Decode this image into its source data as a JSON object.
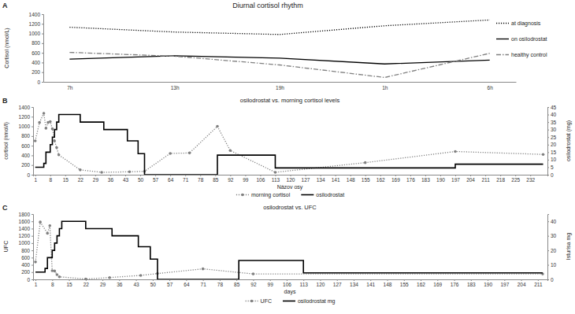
{
  "chart_data": [
    {
      "panel": "A",
      "type": "line",
      "title": "Diurnal cortisol rhythm",
      "y_label": "Cortisol (nmol/L)",
      "categories": [
        "7h",
        "13h",
        "19h",
        "1h",
        "6h"
      ],
      "ylim": [
        0,
        1400
      ],
      "yticks": [
        0,
        200,
        400,
        600,
        800,
        1000,
        1200,
        1400
      ],
      "legend": "right",
      "series": [
        {
          "name": "at diagnosis",
          "color": "#000000",
          "line_style": "dotted",
          "values": [
            1130,
            1030,
            980,
            1160,
            1280
          ]
        },
        {
          "name": "on osilodrostat",
          "color": "#000000",
          "line_style": "solid",
          "values": [
            470,
            540,
            490,
            370,
            450
          ]
        },
        {
          "name": "healthy control",
          "color": "#808080",
          "line_style": "dashdot",
          "values": [
            610,
            530,
            350,
            90,
            590
          ]
        }
      ]
    },
    {
      "panel": "B",
      "type": "line",
      "title": "osilodrostat vs. morning cortisol levels",
      "x_label": "Názov osy",
      "y_label": "cortisol (nmol/l)",
      "y2_label": "osilodrostat (mg)",
      "xlim": [
        0,
        240
      ],
      "xticks": [
        1,
        8,
        15,
        22,
        29,
        36,
        43,
        50,
        57,
        64,
        71,
        78,
        85,
        92,
        99,
        106,
        113,
        120,
        127,
        134,
        141,
        148,
        155,
        162,
        169,
        176,
        183,
        190,
        197,
        204,
        211,
        218,
        225,
        232
      ],
      "ylim": [
        0,
        1400
      ],
      "yticks": [
        0,
        200,
        400,
        600,
        800,
        1000,
        1200,
        1400
      ],
      "y2lim": [
        0,
        45
      ],
      "y2ticks": [
        0,
        5,
        10,
        15,
        20,
        25,
        30,
        35,
        40,
        45
      ],
      "legend": "bottom",
      "series": [
        {
          "name": "morning cortisol",
          "type": "line",
          "color": "#808080",
          "line_style": "dotted",
          "marker": "circle",
          "x": [
            1,
            3,
            5,
            6,
            7,
            8,
            9,
            10,
            11,
            12,
            22,
            32,
            45,
            52,
            64,
            73,
            86,
            92,
            113,
            155,
            197,
            238
          ],
          "values": [
            700,
            1080,
            1270,
            960,
            1080,
            1100,
            950,
            700,
            560,
            410,
            100,
            50,
            60,
            70,
            440,
            450,
            1000,
            500,
            50,
            250,
            480,
            420
          ]
        },
        {
          "name": "osilodrostat",
          "type": "step",
          "axis": "y2",
          "color": "#000000",
          "line_style": "solid",
          "x": [
            1,
            5,
            6,
            8,
            9,
            10,
            11,
            12,
            22,
            33,
            44,
            49,
            52,
            86,
            113,
            197,
            238
          ],
          "values": [
            5,
            7.5,
            15,
            20,
            25,
            30,
            35,
            40,
            35,
            30,
            22.5,
            14,
            0,
            13,
            4.5,
            7,
            7
          ]
        }
      ]
    },
    {
      "panel": "C",
      "type": "line",
      "title": "osilodrostat vs. UFC",
      "x_label": "days",
      "y_label": "UFC",
      "y2_label": "Isturisa mg",
      "xlim": [
        0,
        215
      ],
      "xticks": [
        1,
        8,
        15,
        22,
        29,
        36,
        43,
        50,
        57,
        64,
        71,
        78,
        85,
        92,
        99,
        106,
        113,
        120,
        127,
        134,
        141,
        148,
        155,
        162,
        169,
        176,
        183,
        190,
        197,
        204,
        211
      ],
      "ylim": [
        0,
        1800
      ],
      "yticks": [
        0,
        200,
        400,
        600,
        800,
        1000,
        1200,
        1400,
        1600,
        1800
      ],
      "y2lim": [
        0,
        45
      ],
      "y2ticks": [
        0,
        10,
        20,
        30,
        40
      ],
      "legend": "bottom",
      "series": [
        {
          "name": "UFC",
          "type": "line",
          "color": "#808080",
          "line_style": "dotted",
          "marker": "circle",
          "x": [
            1,
            3,
            6,
            7,
            8,
            9,
            10,
            11,
            22,
            32,
            45,
            52,
            71,
            92,
            213
          ],
          "values": [
            480,
            1580,
            1270,
            1480,
            240,
            230,
            130,
            70,
            10,
            50,
            110,
            160,
            290,
            150,
            150
          ]
        },
        {
          "name": "osilodrostat mg",
          "type": "step",
          "axis": "y2",
          "color": "#000000",
          "line_style": "solid",
          "x": [
            1,
            5,
            6,
            8,
            9,
            10,
            11,
            12,
            22,
            33,
            44,
            49,
            52,
            86,
            113,
            213
          ],
          "values": [
            5,
            7.5,
            15,
            20,
            25,
            30,
            35,
            40,
            35,
            30,
            22.5,
            14,
            0,
            13,
            4.5,
            4.5
          ]
        }
      ]
    }
  ]
}
